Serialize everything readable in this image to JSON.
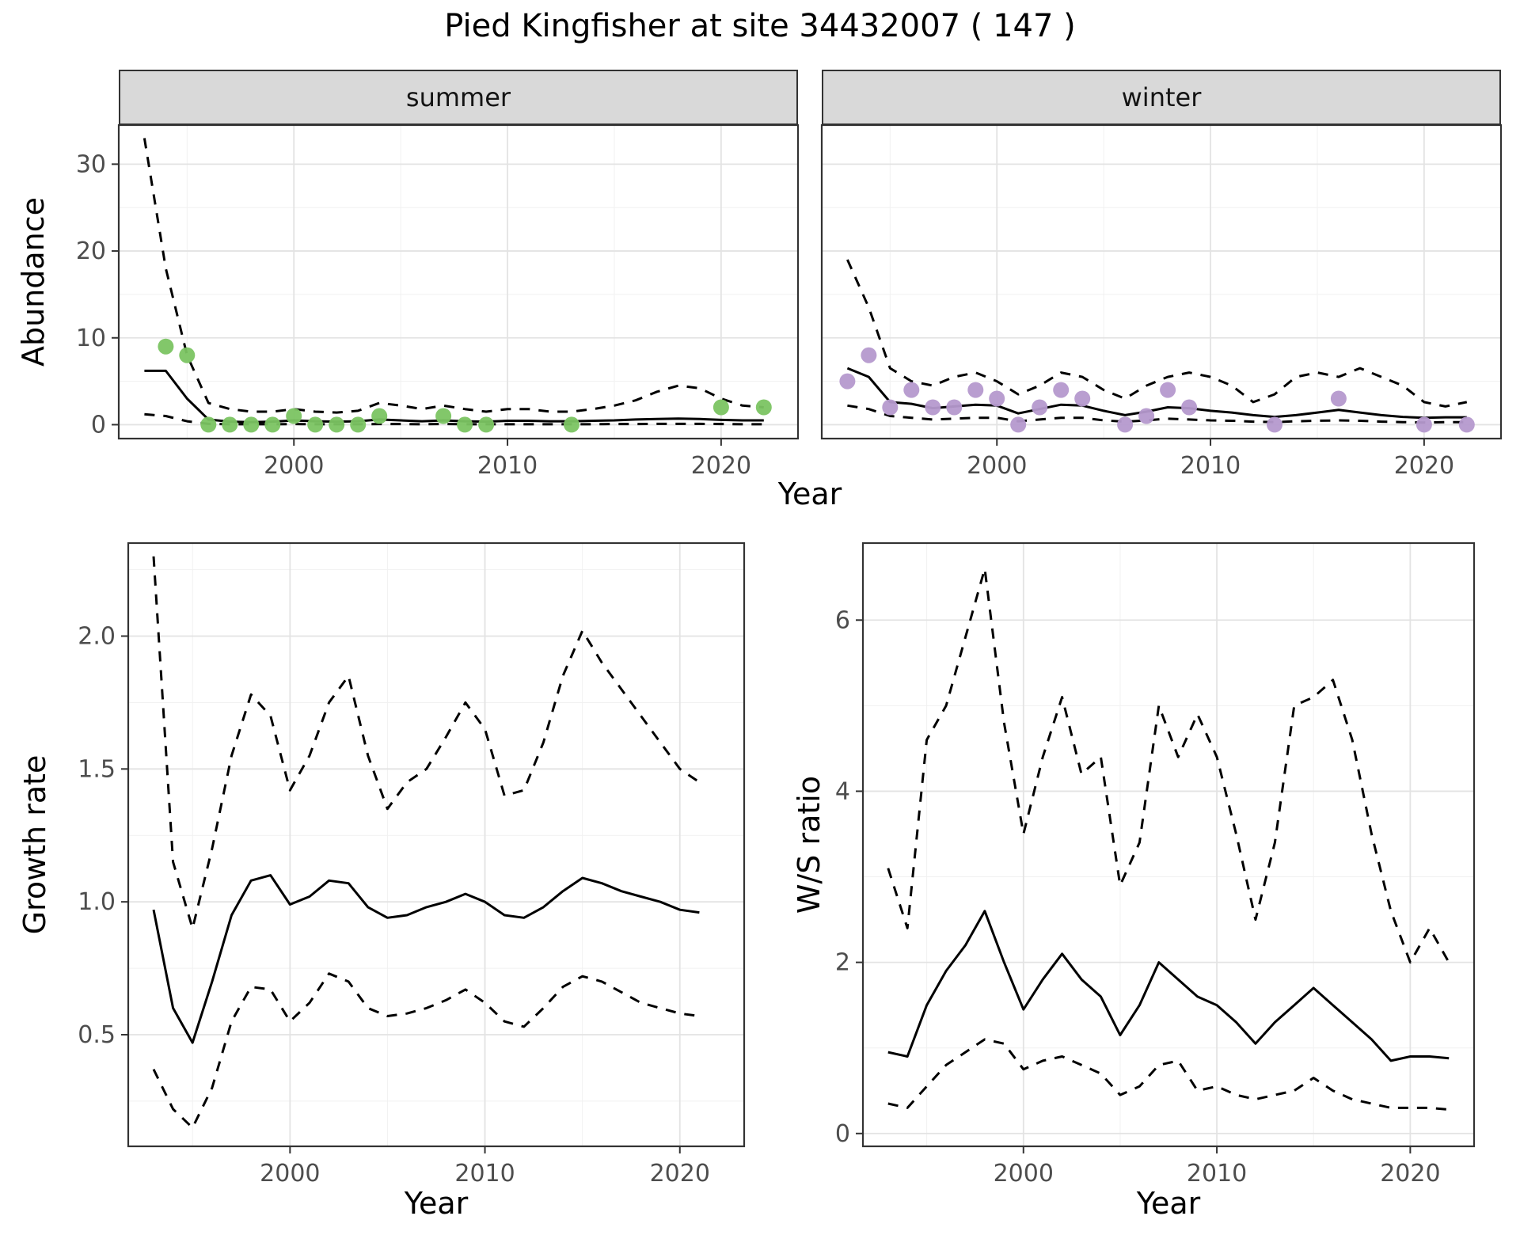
{
  "title": "Pied Kingfisher at site 34432007 ( 147 )",
  "theme": {
    "panel_bg": "#FFFFFF",
    "grid_major": "#E3E3E3",
    "grid_minor": "#F1F1F1",
    "panel_border": "#333333",
    "strip_bg": "#D9D9D9",
    "line": "#000000",
    "tick": "#333333",
    "tick_text": "#4D4D4D",
    "summer_point": "#7BC462",
    "winter_point": "#B599CE"
  },
  "chart_data": [
    {
      "id": "abundance-summer",
      "type": "line+scatter",
      "facet_label": "summer",
      "xlabel": "Year",
      "ylabel": "Abundance",
      "xlim": [
        1991.8,
        2023.6
      ],
      "ylim": [
        -1.6,
        34.5
      ],
      "xticks": [
        2000,
        2010,
        2020
      ],
      "yticks": [
        0,
        10,
        20,
        30
      ],
      "grid": true,
      "legend": "none",
      "series": [
        {
          "name": "fit",
          "style": "solid",
          "x": [
            1993,
            1994,
            1995,
            1996,
            1997,
            1998,
            1999,
            2000,
            2001,
            2002,
            2003,
            2004,
            2005,
            2006,
            2007,
            2008,
            2009,
            2010,
            2011,
            2012,
            2013,
            2014,
            2015,
            2016,
            2017,
            2018,
            2019,
            2020,
            2021,
            2022
          ],
          "y": [
            6.2,
            6.2,
            3.0,
            0.6,
            0.35,
            0.3,
            0.35,
            0.5,
            0.4,
            0.35,
            0.4,
            0.6,
            0.5,
            0.4,
            0.5,
            0.4,
            0.35,
            0.45,
            0.45,
            0.4,
            0.4,
            0.45,
            0.5,
            0.6,
            0.65,
            0.7,
            0.65,
            0.55,
            0.5,
            0.5
          ]
        },
        {
          "name": "upper-ci",
          "style": "dashed",
          "x": [
            1993,
            1994,
            1995,
            1996,
            1997,
            1998,
            1999,
            2000,
            2001,
            2002,
            2003,
            2004,
            2005,
            2006,
            2007,
            2008,
            2009,
            2010,
            2011,
            2012,
            2013,
            2014,
            2015,
            2016,
            2017,
            2018,
            2019,
            2020,
            2021,
            2022
          ],
          "y": [
            33,
            18,
            8,
            2.5,
            1.8,
            1.5,
            1.5,
            1.8,
            1.5,
            1.4,
            1.6,
            2.5,
            2.2,
            1.8,
            2.2,
            1.8,
            1.5,
            1.8,
            1.8,
            1.5,
            1.5,
            1.8,
            2.2,
            2.8,
            3.8,
            4.5,
            4.2,
            3.0,
            2.2,
            2.0
          ]
        },
        {
          "name": "lower-ci",
          "style": "dashed",
          "x": [
            1993,
            1994,
            1995,
            1996,
            1997,
            1998,
            1999,
            2000,
            2001,
            2002,
            2003,
            2004,
            2005,
            2006,
            2007,
            2008,
            2009,
            2010,
            2011,
            2012,
            2013,
            2014,
            2015,
            2016,
            2017,
            2018,
            2019,
            2020,
            2021,
            2022
          ],
          "y": [
            1.2,
            1.0,
            0.4,
            0.1,
            0.05,
            0.05,
            0.05,
            0.08,
            0.05,
            0.05,
            0.05,
            0.08,
            0.08,
            0.05,
            0.08,
            0.05,
            0.05,
            0.05,
            0.05,
            0.05,
            0.05,
            0.05,
            0.08,
            0.08,
            0.1,
            0.1,
            0.1,
            0.08,
            0.05,
            0.05
          ]
        },
        {
          "name": "observations",
          "style": "points",
          "color": "#7BC462",
          "x": [
            1994,
            1995,
            1996,
            1997,
            1998,
            1999,
            2000,
            2001,
            2002,
            2003,
            2004,
            2007,
            2008,
            2009,
            2013,
            2020,
            2022
          ],
          "y": [
            9,
            8,
            0,
            0,
            0,
            0,
            1,
            0,
            0,
            0,
            1,
            1,
            0,
            0,
            0,
            2,
            2
          ]
        }
      ]
    },
    {
      "id": "abundance-winter",
      "type": "line+scatter",
      "facet_label": "winter",
      "xlabel": "Year",
      "xlim": [
        1991.8,
        2023.6
      ],
      "ylim": [
        -1.6,
        34.5
      ],
      "xticks": [
        2000,
        2010,
        2020
      ],
      "yticks": [
        0,
        10,
        20,
        30
      ],
      "grid": true,
      "legend": "none",
      "series": [
        {
          "name": "fit",
          "style": "solid",
          "x": [
            1993,
            1994,
            1995,
            1996,
            1997,
            1998,
            1999,
            2000,
            2001,
            2002,
            2003,
            2004,
            2005,
            2006,
            2007,
            2008,
            2009,
            2010,
            2011,
            2012,
            2013,
            2014,
            2015,
            2016,
            2017,
            2018,
            2019,
            2020,
            2021,
            2022
          ],
          "y": [
            6.5,
            5.5,
            2.6,
            2.4,
            1.9,
            2.1,
            2.3,
            2.2,
            1.3,
            1.8,
            2.3,
            2.2,
            1.6,
            1.1,
            1.5,
            2.0,
            1.9,
            1.6,
            1.4,
            1.1,
            0.9,
            1.1,
            1.4,
            1.7,
            1.4,
            1.1,
            0.9,
            0.8,
            0.85,
            0.85
          ]
        },
        {
          "name": "upper-ci",
          "style": "dashed",
          "x": [
            1993,
            1994,
            1995,
            1996,
            1997,
            1998,
            1999,
            2000,
            2001,
            2002,
            2003,
            2004,
            2005,
            2006,
            2007,
            2008,
            2009,
            2010,
            2011,
            2012,
            2013,
            2014,
            2015,
            2016,
            2017,
            2018,
            2019,
            2020,
            2021,
            2022
          ],
          "y": [
            19,
            13.5,
            6.5,
            5.0,
            4.5,
            5.5,
            6.0,
            5.0,
            3.5,
            4.5,
            6.0,
            5.5,
            4.0,
            3.0,
            4.5,
            5.5,
            6.0,
            5.5,
            4.5,
            2.6,
            3.5,
            5.5,
            6.0,
            5.5,
            6.5,
            5.5,
            4.5,
            2.6,
            2.1,
            2.6
          ]
        },
        {
          "name": "lower-ci",
          "style": "dashed",
          "x": [
            1993,
            1994,
            1995,
            1996,
            1997,
            1998,
            1999,
            2000,
            2001,
            2002,
            2003,
            2004,
            2005,
            2006,
            2007,
            2008,
            2009,
            2010,
            2011,
            2012,
            2013,
            2014,
            2015,
            2016,
            2017,
            2018,
            2019,
            2020,
            2021,
            2022
          ],
          "y": [
            2.2,
            1.8,
            1.0,
            0.8,
            0.6,
            0.7,
            0.8,
            0.8,
            0.4,
            0.6,
            0.8,
            0.8,
            0.5,
            0.35,
            0.5,
            0.7,
            0.6,
            0.5,
            0.45,
            0.35,
            0.3,
            0.4,
            0.45,
            0.5,
            0.45,
            0.35,
            0.3,
            0.25,
            0.3,
            0.3
          ]
        },
        {
          "name": "observations",
          "style": "points",
          "color": "#B599CE",
          "x": [
            1993,
            1994,
            1995,
            1996,
            1997,
            1998,
            1999,
            2000,
            2001,
            2002,
            2003,
            2004,
            2006,
            2007,
            2008,
            2009,
            2013,
            2016,
            2020,
            2022
          ],
          "y": [
            5,
            8,
            2,
            4,
            2,
            2,
            4,
            3,
            0,
            2,
            4,
            3,
            0,
            1,
            4,
            2,
            0,
            3,
            0,
            0
          ]
        }
      ]
    },
    {
      "id": "growth-rate",
      "type": "line",
      "xlabel": "Year",
      "ylabel": "Growth rate",
      "xlim": [
        1991.7,
        2023.3
      ],
      "ylim": [
        0.08,
        2.35
      ],
      "xticks": [
        2000,
        2010,
        2020
      ],
      "yticks": [
        0.5,
        1.0,
        1.5,
        2.0
      ],
      "ytick_format": "1dp",
      "grid": true,
      "legend": "none",
      "series": [
        {
          "name": "fit",
          "style": "solid",
          "x": [
            1993,
            1994,
            1995,
            1996,
            1997,
            1998,
            1999,
            2000,
            2001,
            2002,
            2003,
            2004,
            2005,
            2006,
            2007,
            2008,
            2009,
            2010,
            2011,
            2012,
            2013,
            2014,
            2015,
            2016,
            2017,
            2018,
            2019,
            2020,
            2021
          ],
          "y": [
            0.97,
            0.6,
            0.47,
            0.7,
            0.95,
            1.08,
            1.1,
            0.99,
            1.02,
            1.08,
            1.07,
            0.98,
            0.94,
            0.95,
            0.98,
            1.0,
            1.03,
            1.0,
            0.95,
            0.94,
            0.98,
            1.04,
            1.09,
            1.07,
            1.04,
            1.02,
            1.0,
            0.97,
            0.96
          ]
        },
        {
          "name": "upper-ci",
          "style": "dashed",
          "x": [
            1993,
            1994,
            1995,
            1996,
            1997,
            1998,
            1999,
            2000,
            2001,
            2002,
            2003,
            2004,
            2005,
            2006,
            2007,
            2008,
            2009,
            2010,
            2011,
            2012,
            2013,
            2014,
            2015,
            2016,
            2017,
            2018,
            2019,
            2020,
            2021
          ],
          "y": [
            2.3,
            1.15,
            0.9,
            1.2,
            1.55,
            1.78,
            1.7,
            1.42,
            1.55,
            1.75,
            1.85,
            1.55,
            1.35,
            1.45,
            1.5,
            1.62,
            1.75,
            1.65,
            1.4,
            1.42,
            1.6,
            1.85,
            2.02,
            1.9,
            1.8,
            1.7,
            1.6,
            1.5,
            1.45
          ]
        },
        {
          "name": "lower-ci",
          "style": "dashed",
          "x": [
            1993,
            1994,
            1995,
            1996,
            1997,
            1998,
            1999,
            2000,
            2001,
            2002,
            2003,
            2004,
            2005,
            2006,
            2007,
            2008,
            2009,
            2010,
            2011,
            2012,
            2013,
            2014,
            2015,
            2016,
            2017,
            2018,
            2019,
            2020,
            2021
          ],
          "y": [
            0.37,
            0.22,
            0.15,
            0.3,
            0.55,
            0.68,
            0.67,
            0.55,
            0.62,
            0.73,
            0.7,
            0.6,
            0.57,
            0.58,
            0.6,
            0.63,
            0.67,
            0.62,
            0.55,
            0.53,
            0.6,
            0.68,
            0.72,
            0.7,
            0.66,
            0.62,
            0.6,
            0.58,
            0.57
          ]
        }
      ]
    },
    {
      "id": "ws-ratio",
      "type": "line",
      "xlabel": "Year",
      "ylabel": "W/S ratio",
      "xlim": [
        1991.7,
        2023.3
      ],
      "ylim": [
        -0.15,
        6.9
      ],
      "xticks": [
        2000,
        2010,
        2020
      ],
      "yticks": [
        0,
        2,
        4,
        6
      ],
      "grid": true,
      "legend": "none",
      "series": [
        {
          "name": "fit",
          "style": "solid",
          "x": [
            1993,
            1994,
            1995,
            1996,
            1997,
            1998,
            1999,
            2000,
            2001,
            2002,
            2003,
            2004,
            2005,
            2006,
            2007,
            2008,
            2009,
            2010,
            2011,
            2012,
            2013,
            2014,
            2015,
            2016,
            2017,
            2018,
            2019,
            2020,
            2021,
            2022
          ],
          "y": [
            0.95,
            0.9,
            1.5,
            1.9,
            2.2,
            2.6,
            2.0,
            1.45,
            1.8,
            2.1,
            1.8,
            1.6,
            1.15,
            1.5,
            2.0,
            1.8,
            1.6,
            1.5,
            1.3,
            1.05,
            1.3,
            1.5,
            1.7,
            1.5,
            1.3,
            1.1,
            0.85,
            0.9,
            0.9,
            0.88
          ]
        },
        {
          "name": "upper-ci",
          "style": "dashed",
          "x": [
            1993,
            1994,
            1995,
            1996,
            1997,
            1998,
            1999,
            2000,
            2001,
            2002,
            2003,
            2004,
            2005,
            2006,
            2007,
            2008,
            2009,
            2010,
            2011,
            2012,
            2013,
            2014,
            2015,
            2016,
            2017,
            2018,
            2019,
            2020,
            2021,
            2022
          ],
          "y": [
            3.1,
            2.4,
            4.6,
            5.0,
            5.8,
            6.6,
            4.8,
            3.5,
            4.4,
            5.1,
            4.2,
            4.4,
            2.9,
            3.4,
            5.0,
            4.4,
            4.9,
            4.4,
            3.5,
            2.5,
            3.4,
            5.0,
            5.1,
            5.3,
            4.6,
            3.5,
            2.6,
            2.0,
            2.4,
            2.0
          ]
        },
        {
          "name": "lower-ci",
          "style": "dashed",
          "x": [
            1993,
            1994,
            1995,
            1996,
            1997,
            1998,
            1999,
            2000,
            2001,
            2002,
            2003,
            2004,
            2005,
            2006,
            2007,
            2008,
            2009,
            2010,
            2011,
            2012,
            2013,
            2014,
            2015,
            2016,
            2017,
            2018,
            2019,
            2020,
            2021,
            2022
          ],
          "y": [
            0.35,
            0.3,
            0.55,
            0.8,
            0.95,
            1.1,
            1.05,
            0.75,
            0.85,
            0.9,
            0.8,
            0.7,
            0.45,
            0.55,
            0.8,
            0.85,
            0.5,
            0.55,
            0.45,
            0.4,
            0.45,
            0.5,
            0.65,
            0.5,
            0.4,
            0.35,
            0.3,
            0.3,
            0.3,
            0.28
          ]
        }
      ]
    }
  ]
}
